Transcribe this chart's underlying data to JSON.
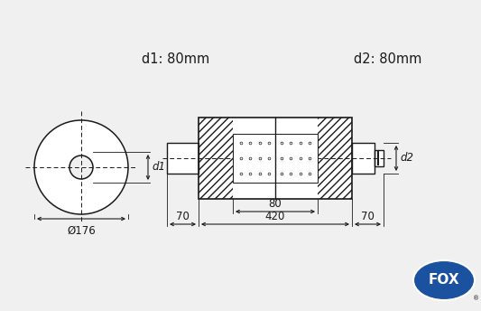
{
  "bg_color": "#f0f0f0",
  "line_color": "#1a1a1a",
  "fox_blue": "#1a52a0",
  "d1_label": "d1: 80mm",
  "d2_label": "d2: 80mm",
  "dim_176": "Ø176",
  "dim_420": "420",
  "dim_80": "80",
  "dim_70_left": "70",
  "dim_70_right": "70",
  "d1_arrow": "d1",
  "d2_arrow": "d2",
  "font_size_label": 10.5,
  "font_size_dim": 8.5,
  "font_size_small": 7.5
}
